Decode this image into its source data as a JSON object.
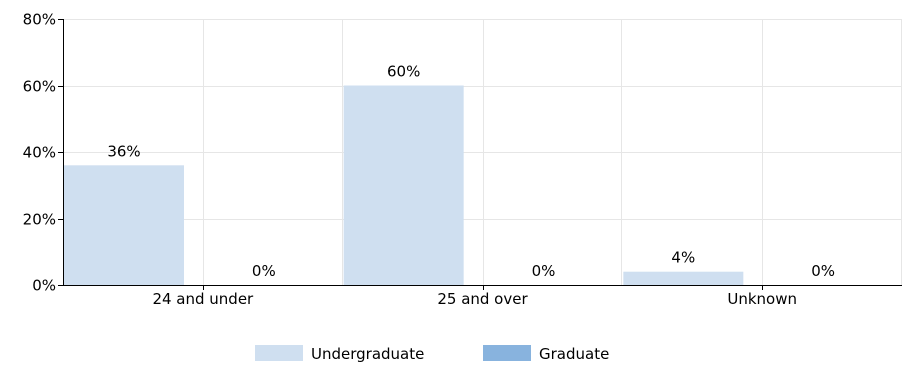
{
  "chart_data": {
    "type": "bar",
    "categories": [
      "24 and under",
      "25 and over",
      "Unknown"
    ],
    "series": [
      {
        "name": "Undergraduate",
        "values": [
          36,
          60,
          4
        ],
        "labels": [
          "36%",
          "60%",
          "4%"
        ],
        "color": "#cfdff0"
      },
      {
        "name": "Graduate",
        "values": [
          0,
          0,
          0
        ],
        "labels": [
          "0%",
          "0%",
          "0%"
        ],
        "color": "#88b3de"
      }
    ],
    "ylim": [
      0,
      80
    ],
    "yticks": [
      0,
      20,
      40,
      60,
      80
    ],
    "ytick_labels": [
      "0%",
      "20%",
      "40%",
      "60%",
      "80%"
    ],
    "grid": true,
    "legend_position": "bottom-center",
    "colors": {
      "axis": "#000000",
      "grid": "#e6e6e6"
    }
  }
}
